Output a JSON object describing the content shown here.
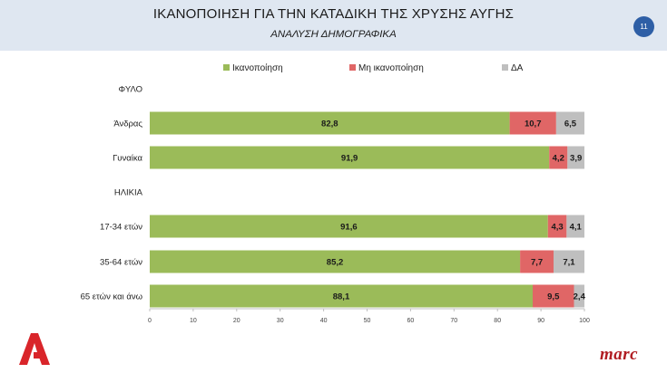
{
  "header": {
    "title": "ΙΚΑΝΟΠΟΙΗΣΗ ΓΙΑ ΤΗΝ ΚΑΤΑΔΙΚΗ ΤΗΣ ΧΡΥΣΗΣ ΑΥΓΗΣ",
    "subtitle": "ΑΝΑΛΥΣΗ ΔΗΜΟΓΡΑΦΙΚΑ",
    "page_number": "11"
  },
  "brand": {
    "right_logo": "marc"
  },
  "colors": {
    "satisfied": "#9bbb59",
    "not_satisfied": "#e06666",
    "dk": "#bfbfbf"
  },
  "chart_data": {
    "type": "bar",
    "orientation": "horizontal",
    "stacked": true,
    "categories": [
      "ΦΥΛΟ",
      "Άνδρας",
      "Γυναίκα",
      "ΗΛΙΚΙΑ",
      "17-34 ετών",
      "35-64 ετών",
      "65 ετών και άνω"
    ],
    "series": [
      {
        "name": "Ικανοποίηση",
        "color": "#9bbb59",
        "values": [
          null,
          82.8,
          91.9,
          null,
          91.6,
          85.2,
          88.1
        ]
      },
      {
        "name": "Μη ικανοποίηση",
        "color": "#e06666",
        "values": [
          null,
          10.7,
          4.2,
          null,
          4.3,
          7.7,
          9.5
        ]
      },
      {
        "name": "ΔΑ",
        "color": "#bfbfbf",
        "values": [
          null,
          6.5,
          3.9,
          null,
          4.1,
          7.1,
          2.4
        ]
      }
    ],
    "value_labels": [
      [
        null,
        "82,8",
        "91,9",
        null,
        "91,6",
        "85,2",
        "88,1"
      ],
      [
        null,
        "10,7",
        "4,2",
        null,
        "4,3",
        "7,7",
        "9,5"
      ],
      [
        null,
        "6,5",
        "3,9",
        null,
        "4,1",
        "7,1",
        "2,4"
      ]
    ],
    "xlim": [
      0,
      100
    ],
    "xticks": [
      0,
      10,
      20,
      30,
      40,
      50,
      60,
      70,
      80,
      90,
      100
    ],
    "xtick_labels": [
      "0",
      "10",
      "20",
      "30",
      "40",
      "50",
      "60",
      "70",
      "80",
      "90",
      "100"
    ],
    "legend_position": "top",
    "grid": false
  }
}
